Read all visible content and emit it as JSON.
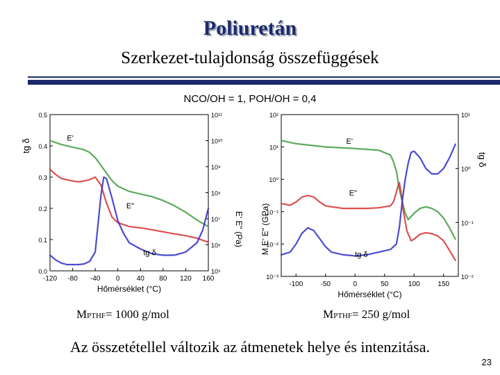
{
  "slide": {
    "title": "Poliuretán",
    "subtitle": "Szerkezet-tulajdonság összefüggések",
    "params": "NCO/OH = 1, POH/OH = 0,4",
    "conclusion": "Az összetétellel változik az átmenetek helye és intenzitása.",
    "page_number": "23"
  },
  "left_chart_caption": {
    "prefix": "M",
    "sub": "PTHF",
    "value": "= 1000 g/mol"
  },
  "right_chart_caption": {
    "prefix": "M",
    "sub": "PTHF",
    "value": "= 250 g/mol"
  },
  "colors": {
    "green": "#3f9a3f",
    "red": "#d83030",
    "blue": "#2b2bc8",
    "title": "#1b2a6b"
  },
  "chart_data": [
    {
      "type": "line",
      "title": "",
      "xlabel": "Hőmérséklet (°C)",
      "ylabel_left": "tg δ",
      "ylabel_right": "E' E\" (Pa)",
      "xlim": [
        -120,
        160
      ],
      "x_ticks": [
        "-120",
        "-80",
        "-40",
        "0",
        "40",
        "80",
        "120",
        "160"
      ],
      "x_tick_values": [
        -120,
        -80,
        -40,
        0,
        40,
        80,
        120,
        160
      ],
      "ylim_left": [
        0,
        0.5
      ],
      "y_ticks_left": [
        "0.0",
        "0.1",
        "0.2",
        "0.3",
        "0.4",
        "0.5"
      ],
      "y_tick_values_left": [
        0,
        0.1,
        0.2,
        0.3,
        0.4,
        0.5
      ],
      "ylim_right_log": [
        5,
        11
      ],
      "y_ticks_right": [
        "10⁵",
        "10⁶",
        "10⁷",
        "10⁸",
        "10⁹",
        "10¹⁰",
        "10¹¹"
      ],
      "y_tick_values_right": [
        5,
        6,
        7,
        8,
        9,
        10,
        11
      ],
      "annotations": [
        {
          "text": "E'",
          "x": -90,
          "log": 10.0,
          "axis": "right"
        },
        {
          "text": "E\"",
          "x": 15,
          "log": 7.4,
          "axis": "right"
        },
        {
          "text": "tg δ",
          "x": 45,
          "log": 5.6,
          "axis": "right"
        }
      ],
      "series": [
        {
          "name": "E'",
          "color": "green",
          "axis": "right",
          "x": [
            -120,
            -100,
            -80,
            -60,
            -50,
            -40,
            -30,
            -20,
            -10,
            0,
            20,
            40,
            60,
            80,
            100,
            120,
            140,
            160
          ],
          "y": [
            10.0,
            9.85,
            9.75,
            9.65,
            9.55,
            9.35,
            9.05,
            8.75,
            8.45,
            8.25,
            8.05,
            7.95,
            7.85,
            7.7,
            7.5,
            7.25,
            6.95,
            6.7
          ]
        },
        {
          "name": "E\"",
          "color": "red",
          "axis": "right",
          "x": [
            -120,
            -110,
            -100,
            -90,
            -80,
            -70,
            -60,
            -50,
            -40,
            -30,
            -20,
            -10,
            0,
            20,
            40,
            60,
            80,
            100,
            120,
            140,
            160
          ],
          "y": [
            8.9,
            8.7,
            8.55,
            8.5,
            8.45,
            8.42,
            8.45,
            8.5,
            8.6,
            8.3,
            7.6,
            7.05,
            6.85,
            6.7,
            6.65,
            6.58,
            6.5,
            6.42,
            6.35,
            6.25,
            6.1
          ]
        },
        {
          "name": "tg δ",
          "color": "blue",
          "axis": "left",
          "x": [
            -120,
            -110,
            -100,
            -90,
            -80,
            -70,
            -60,
            -50,
            -40,
            -30,
            -25,
            -20,
            -10,
            0,
            10,
            20,
            40,
            60,
            80,
            100,
            120,
            140,
            150,
            160
          ],
          "y": [
            0.05,
            0.035,
            0.025,
            0.02,
            0.02,
            0.02,
            0.022,
            0.03,
            0.06,
            0.24,
            0.3,
            0.295,
            0.23,
            0.16,
            0.12,
            0.09,
            0.07,
            0.055,
            0.05,
            0.05,
            0.06,
            0.09,
            0.13,
            0.2
          ]
        }
      ]
    },
    {
      "type": "line",
      "title": "",
      "xlabel": "Hőmérséklet (°C)",
      "ylabel_left": "M E' E\" (GPa)",
      "ylabel_right": "tg δ",
      "xlim": [
        -125,
        175
      ],
      "x_ticks": [
        "-100",
        "-50",
        "0",
        "50",
        "100",
        "150"
      ],
      "x_tick_values": [
        -100,
        -50,
        0,
        50,
        100,
        150
      ],
      "ylim_left_log": [
        -3,
        2
      ],
      "y_ticks_left": [
        "10²",
        "10¹",
        "10⁰",
        "10⁻¹",
        "10⁻²",
        "10⁻³"
      ],
      "y_tick_values_left": [
        2,
        1,
        0,
        -1,
        -2,
        -3
      ],
      "ylim_right_log": [
        -2,
        1
      ],
      "y_ticks_right": [
        "10¹",
        "10⁰",
        "10⁻¹",
        "10⁻²"
      ],
      "y_tick_values_right": [
        1,
        0,
        -1,
        -2
      ],
      "annotations": [
        {
          "text": "E'",
          "x": -15,
          "log": 1.1,
          "axis": "left"
        },
        {
          "text": "E\"",
          "x": -10,
          "log": -0.5,
          "axis": "left"
        },
        {
          "text": "tg δ",
          "x": 0,
          "log": -2.4,
          "axis": "left"
        }
      ],
      "series": [
        {
          "name": "E'",
          "color": "green",
          "axis": "left",
          "x": [
            -125,
            -100,
            -50,
            0,
            40,
            60,
            65,
            70,
            75,
            80,
            85,
            90,
            100,
            110,
            120,
            130,
            140,
            150,
            160,
            170
          ],
          "y": [
            1.2,
            1.1,
            1.0,
            0.95,
            0.9,
            0.75,
            0.55,
            0.25,
            -0.3,
            -0.7,
            -1.05,
            -1.25,
            -1.05,
            -0.9,
            -0.85,
            -0.9,
            -1.0,
            -1.2,
            -1.5,
            -1.85
          ]
        },
        {
          "name": "E\"",
          "color": "red",
          "axis": "left",
          "x": [
            -125,
            -110,
            -100,
            -90,
            -80,
            -70,
            -60,
            -50,
            -40,
            -20,
            0,
            20,
            40,
            60,
            65,
            70,
            72,
            75,
            78,
            82,
            88,
            95,
            100,
            110,
            120,
            130,
            140,
            150,
            160,
            170
          ],
          "y": [
            -0.75,
            -0.8,
            -0.7,
            -0.55,
            -0.5,
            -0.55,
            -0.7,
            -0.82,
            -0.85,
            -0.9,
            -0.9,
            -0.9,
            -0.88,
            -0.82,
            -0.7,
            -0.4,
            -0.25,
            -0.1,
            -0.4,
            -1.0,
            -1.6,
            -1.9,
            -1.85,
            -1.7,
            -1.65,
            -1.68,
            -1.75,
            -1.9,
            -2.2,
            -2.5
          ]
        },
        {
          "name": "tg δ",
          "color": "blue",
          "axis": "right",
          "x": [
            -125,
            -110,
            -100,
            -90,
            -80,
            -70,
            -60,
            -50,
            -40,
            -20,
            0,
            20,
            40,
            60,
            70,
            75,
            80,
            85,
            90,
            95,
            100,
            110,
            120,
            130,
            140,
            150,
            160,
            170
          ],
          "y": [
            -1.6,
            -1.55,
            -1.4,
            -1.2,
            -1.1,
            -1.15,
            -1.3,
            -1.45,
            -1.55,
            -1.6,
            -1.62,
            -1.6,
            -1.55,
            -1.5,
            -1.4,
            -1.1,
            -0.6,
            -0.2,
            0.1,
            0.3,
            0.32,
            0.2,
            0.0,
            -0.1,
            -0.1,
            0.0,
            0.2,
            0.45
          ]
        }
      ]
    }
  ]
}
